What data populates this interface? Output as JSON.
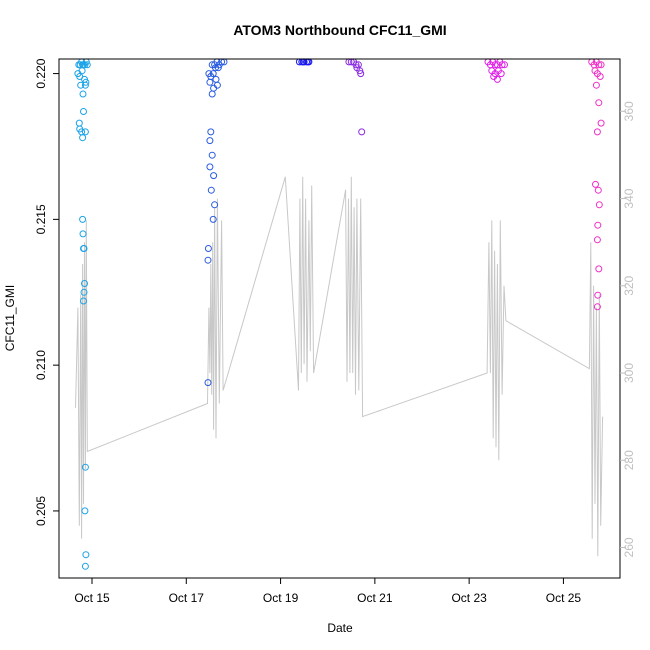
{
  "chart_data": {
    "type": "scatter",
    "title": "ATOM3 Northbound CFC11_GMI",
    "xlabel": "Date",
    "ylabel": "CFC11_GMI",
    "x_tick_labels": [
      "Oct 15",
      "Oct 17",
      "Oct 19",
      "Oct 21",
      "Oct 23",
      "Oct 25"
    ],
    "x_tick_days": [
      15,
      17,
      19,
      21,
      23,
      25
    ],
    "xlim": [
      14.3,
      26.2
    ],
    "ylim": [
      0.2027,
      0.2205
    ],
    "y_ticks": [
      "0.205",
      "0.210",
      "0.215",
      "0.220"
    ],
    "secondary_axis": {
      "color": "#bfbfbf",
      "ylim": [
        253,
        372
      ],
      "ticks": [
        "260",
        "280",
        "300",
        "320",
        "340",
        "360"
      ]
    },
    "series": [
      {
        "color": "#1aa3e8",
        "points": [
          [
            14.72,
            0.2203
          ],
          [
            14.75,
            0.2203
          ],
          [
            14.78,
            0.2204
          ],
          [
            14.8,
            0.2203
          ],
          [
            14.82,
            0.2203
          ],
          [
            14.85,
            0.2203
          ],
          [
            14.88,
            0.2204
          ],
          [
            14.9,
            0.2203
          ],
          [
            14.7,
            0.22
          ],
          [
            14.74,
            0.2199
          ],
          [
            14.79,
            0.2201
          ],
          [
            14.84,
            0.2198
          ],
          [
            14.87,
            0.2197
          ],
          [
            14.76,
            0.2196
          ],
          [
            14.81,
            0.2193
          ],
          [
            14.86,
            0.2196
          ],
          [
            14.73,
            0.2183
          ],
          [
            14.74,
            0.2181
          ],
          [
            14.78,
            0.218
          ],
          [
            14.86,
            0.218
          ],
          [
            14.8,
            0.2178
          ],
          [
            14.82,
            0.2187
          ],
          [
            14.8,
            0.215
          ],
          [
            14.81,
            0.2145
          ],
          [
            14.82,
            0.214
          ],
          [
            14.83,
            0.214
          ],
          [
            14.84,
            0.2128
          ],
          [
            14.83,
            0.2125
          ],
          [
            14.82,
            0.2122
          ],
          [
            14.86,
            0.2065
          ],
          [
            14.85,
            0.205
          ],
          [
            14.87,
            0.2035
          ],
          [
            14.86,
            0.2031
          ]
        ]
      },
      {
        "color": "#2a5ce0",
        "points": [
          [
            17.55,
            0.2203
          ],
          [
            17.6,
            0.2203
          ],
          [
            17.65,
            0.2204
          ],
          [
            17.7,
            0.2203
          ],
          [
            17.75,
            0.2204
          ],
          [
            17.8,
            0.2204
          ],
          [
            17.62,
            0.2202
          ],
          [
            17.68,
            0.2202
          ],
          [
            17.48,
            0.22
          ],
          [
            17.52,
            0.2199
          ],
          [
            17.57,
            0.22
          ],
          [
            17.63,
            0.2198
          ],
          [
            17.5,
            0.2197
          ],
          [
            17.58,
            0.2195
          ],
          [
            17.66,
            0.2196
          ],
          [
            17.55,
            0.2193
          ],
          [
            17.52,
            0.218
          ],
          [
            17.5,
            0.2177
          ],
          [
            17.55,
            0.2172
          ],
          [
            17.5,
            0.2168
          ],
          [
            17.58,
            0.2165
          ],
          [
            17.53,
            0.216
          ],
          [
            17.6,
            0.2155
          ],
          [
            17.57,
            0.215
          ],
          [
            17.47,
            0.214
          ],
          [
            17.46,
            0.2136
          ],
          [
            17.46,
            0.2094
          ]
        ]
      },
      {
        "color": "#1a1aee",
        "points": [
          [
            19.4,
            0.2204
          ],
          [
            19.45,
            0.2204
          ],
          [
            19.5,
            0.2204
          ],
          [
            19.55,
            0.2204
          ],
          [
            19.6,
            0.2204
          ],
          [
            19.48,
            0.2204
          ],
          [
            19.58,
            0.2204
          ]
        ]
      },
      {
        "color": "#8a2be2",
        "points": [
          [
            20.45,
            0.2204
          ],
          [
            20.5,
            0.2204
          ],
          [
            20.55,
            0.2204
          ],
          [
            20.6,
            0.2203
          ],
          [
            20.65,
            0.2203
          ],
          [
            20.62,
            0.2202
          ],
          [
            20.68,
            0.2201
          ],
          [
            20.7,
            0.22
          ],
          [
            20.72,
            0.218
          ]
        ]
      },
      {
        "color": "#e020e8",
        "points": [
          [
            23.4,
            0.2204
          ],
          [
            23.45,
            0.2203
          ],
          [
            23.5,
            0.2204
          ],
          [
            23.55,
            0.2203
          ],
          [
            23.6,
            0.2203
          ],
          [
            23.65,
            0.2204
          ],
          [
            23.7,
            0.2203
          ],
          [
            23.75,
            0.2203
          ],
          [
            23.48,
            0.2201
          ],
          [
            23.55,
            0.22
          ],
          [
            23.62,
            0.2201
          ],
          [
            23.68,
            0.22
          ],
          [
            23.52,
            0.2199
          ],
          [
            23.6,
            0.2198
          ]
        ]
      },
      {
        "color": "#f030c8",
        "points": [
          [
            25.6,
            0.2204
          ],
          [
            25.65,
            0.2203
          ],
          [
            25.7,
            0.2204
          ],
          [
            25.75,
            0.2203
          ],
          [
            25.8,
            0.2203
          ],
          [
            25.67,
            0.2201
          ],
          [
            25.72,
            0.22
          ],
          [
            25.78,
            0.2199
          ],
          [
            25.7,
            0.2196
          ],
          [
            25.75,
            0.219
          ],
          [
            25.8,
            0.2183
          ],
          [
            25.72,
            0.218
          ],
          [
            25.68,
            0.2162
          ],
          [
            25.74,
            0.216
          ],
          [
            25.76,
            0.2155
          ],
          [
            25.73,
            0.2148
          ],
          [
            25.72,
            0.2143
          ],
          [
            25.75,
            0.2133
          ],
          [
            25.73,
            0.2124
          ],
          [
            25.72,
            0.212
          ]
        ]
      }
    ],
    "gray_line": {
      "color": "#c8c8c8",
      "axis": "secondary",
      "points": [
        [
          14.65,
          292
        ],
        [
          14.7,
          315
        ],
        [
          14.73,
          265
        ],
        [
          14.76,
          318
        ],
        [
          14.78,
          262
        ],
        [
          14.8,
          325
        ],
        [
          14.82,
          270
        ],
        [
          14.84,
          330
        ],
        [
          14.86,
          278
        ],
        [
          14.88,
          335
        ],
        [
          14.9,
          282
        ],
        [
          17.45,
          293
        ],
        [
          17.48,
          315
        ],
        [
          17.5,
          300
        ],
        [
          17.52,
          325
        ],
        [
          17.54,
          295
        ],
        [
          17.56,
          330
        ],
        [
          17.58,
          287
        ],
        [
          17.6,
          338
        ],
        [
          17.63,
          285
        ],
        [
          17.66,
          340
        ],
        [
          17.7,
          293
        ],
        [
          17.75,
          335
        ],
        [
          17.78,
          296
        ],
        [
          19.1,
          345
        ],
        [
          19.38,
          296
        ],
        [
          19.41,
          340
        ],
        [
          19.44,
          300
        ],
        [
          19.47,
          345
        ],
        [
          19.5,
          302
        ],
        [
          19.53,
          340
        ],
        [
          19.56,
          298
        ],
        [
          19.6,
          335
        ],
        [
          19.63,
          305
        ],
        [
          19.66,
          343
        ],
        [
          19.7,
          300
        ],
        [
          20.38,
          342
        ],
        [
          20.41,
          298
        ],
        [
          20.44,
          340
        ],
        [
          20.47,
          300
        ],
        [
          20.5,
          345
        ],
        [
          20.53,
          300
        ],
        [
          20.56,
          338
        ],
        [
          20.59,
          295
        ],
        [
          20.62,
          340
        ],
        [
          20.66,
          296
        ],
        [
          20.7,
          340
        ],
        [
          20.74,
          290
        ],
        [
          23.38,
          300
        ],
        [
          23.42,
          330
        ],
        [
          23.45,
          300
        ],
        [
          23.48,
          335
        ],
        [
          23.51,
          285
        ],
        [
          23.54,
          328
        ],
        [
          23.57,
          283
        ],
        [
          23.6,
          325
        ],
        [
          23.63,
          280
        ],
        [
          23.66,
          335
        ],
        [
          23.7,
          295
        ],
        [
          23.74,
          320
        ],
        [
          23.78,
          312
        ],
        [
          25.55,
          301
        ],
        [
          25.58,
          330
        ],
        [
          25.61,
          262
        ],
        [
          25.64,
          320
        ],
        [
          25.67,
          270
        ],
        [
          25.7,
          315
        ],
        [
          25.73,
          258
        ],
        [
          25.76,
          318
        ],
        [
          25.79,
          265
        ],
        [
          25.83,
          290
        ]
      ]
    }
  }
}
